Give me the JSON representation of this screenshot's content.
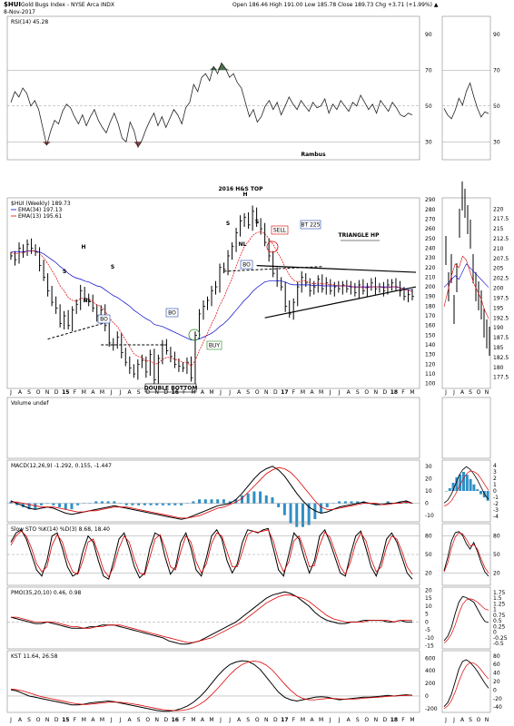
{
  "header": {
    "symbol": "$HUI",
    "name": "Gold Bugs Index - NYSE Arca INDX",
    "date": "8-Nov-2017",
    "ohlc": "Open 186.46 High 191.00 Low 185.78 Close 189.73 Chg +3.71 (+1.99%) ▲"
  },
  "colors": {
    "price": "#000000",
    "ema34": "#0000cc",
    "ema13": "#dd0000",
    "macd_hist": "#2f8fc6",
    "rsi_fill": "#4b6b4b",
    "rsi_low_fill": "#8a4a4a",
    "grid": "#aaaaaa",
    "boxes": "#2244aa"
  },
  "chart_data": [
    {
      "type": "line",
      "panel": "RSI",
      "legend": "RSI(14) 45.28",
      "yticks": [
        30,
        50,
        70,
        90
      ],
      "ylim": [
        20,
        100
      ],
      "annotation": "Rambus",
      "x": [
        0,
        4,
        8,
        12,
        16,
        20,
        24,
        28,
        32,
        36,
        40,
        44,
        48,
        52,
        56,
        60,
        64,
        68,
        72,
        76,
        80,
        84,
        88,
        92,
        96,
        100,
        104,
        108,
        112,
        116,
        120,
        124,
        128,
        132,
        136,
        140,
        144,
        148,
        152,
        156,
        160,
        164,
        168,
        172,
        176,
        180,
        184,
        188,
        192,
        196,
        200,
        204,
        208,
        212,
        216,
        220,
        224,
        228,
        232,
        236,
        240,
        244,
        248,
        252,
        256,
        260,
        264,
        268,
        272,
        276,
        280,
        284,
        288,
        292,
        296,
        300,
        304,
        308,
        312,
        316,
        320,
        324,
        328,
        332,
        336,
        340,
        344,
        348,
        352,
        356,
        360,
        364,
        368,
        372,
        376,
        380,
        384,
        388,
        392,
        396,
        400,
        404
      ],
      "values": [
        52,
        58,
        55,
        60,
        57,
        50,
        53,
        48,
        38,
        28,
        36,
        42,
        40,
        47,
        51,
        49,
        44,
        40,
        45,
        39,
        44,
        48,
        42,
        38,
        35,
        41,
        46,
        40,
        32,
        30,
        41,
        36,
        27,
        31,
        37,
        42,
        46,
        39,
        44,
        38,
        43,
        48,
        45,
        40,
        49,
        52,
        62,
        58,
        66,
        68,
        64,
        72,
        68,
        74,
        71,
        66,
        68,
        63,
        60,
        52,
        44,
        48,
        41,
        44,
        50,
        53,
        48,
        52,
        45,
        50,
        55,
        51,
        48,
        53,
        50,
        47,
        52,
        49,
        50,
        54,
        46,
        51,
        48,
        53,
        50,
        47,
        52,
        50,
        56,
        52,
        48,
        51,
        46,
        53,
        50,
        47,
        52,
        49,
        45,
        44,
        46,
        45
      ],
      "inset_legend": "",
      "inset_yticks": [
        30,
        50,
        70,
        90
      ]
    },
    {
      "type": "line",
      "panel": "Price",
      "title": "2016 H&S TOP",
      "legend": [
        "$HUI (Weekly) 189.73",
        "EMA(34) 197.13",
        "EMA(13) 195.61"
      ],
      "yticks": [
        100,
        110,
        120,
        130,
        140,
        150,
        160,
        170,
        180,
        190,
        200,
        210,
        220,
        230,
        240,
        250,
        260,
        270,
        280,
        290
      ],
      "ylim": [
        95,
        292
      ],
      "x_labels": [
        "J",
        "A",
        "S",
        "O",
        "N",
        "D",
        "15",
        "F",
        "M",
        "A",
        "M",
        "J",
        "J",
        "A",
        "S",
        "O",
        "N",
        "D",
        "16",
        "F",
        "M",
        "A",
        "M",
        "J",
        "J",
        "A",
        "S",
        "O",
        "N",
        "D",
        "17",
        "F",
        "M",
        "A",
        "M",
        "J",
        "J",
        "A",
        "S",
        "O",
        "N",
        "D",
        "18",
        "F",
        "M"
      ],
      "close": [
        232,
        228,
        240,
        236,
        244,
        240,
        236,
        222,
        210,
        196,
        184,
        178,
        162,
        170,
        160,
        176,
        182,
        196,
        188,
        186,
        178,
        170,
        176,
        160,
        142,
        140,
        148,
        132,
        122,
        116,
        110,
        120,
        124,
        112,
        130,
        104,
        126,
        140,
        134,
        128,
        120,
        118,
        116,
        122,
        106,
        150,
        172,
        180,
        186,
        196,
        200,
        220,
        218,
        232,
        242,
        256,
        268,
        272,
        264,
        278,
        266,
        260,
        246,
        232,
        214,
        206,
        200,
        180,
        172,
        184,
        200,
        210,
        204,
        196,
        200,
        208,
        198,
        204,
        196,
        200,
        198,
        202,
        198,
        200,
        194,
        202,
        196,
        200,
        204,
        198,
        200,
        196,
        202,
        204,
        200,
        196,
        190,
        192,
        190
      ],
      "ema34": [
        236,
        236,
        236,
        236,
        237,
        237,
        237,
        236,
        234,
        231,
        228,
        225,
        221,
        218,
        214,
        211,
        209,
        208,
        206,
        205,
        203,
        201,
        200,
        197,
        194,
        191,
        189,
        186,
        183,
        180,
        176,
        173,
        170,
        167,
        165,
        161,
        160,
        159,
        157,
        155,
        153,
        151,
        149,
        147,
        145,
        145,
        146,
        148,
        150,
        152,
        155,
        159,
        162,
        166,
        171,
        176,
        181,
        186,
        190,
        195,
        199,
        202,
        205,
        206,
        206,
        206,
        206,
        205,
        203,
        202,
        202,
        202,
        202,
        202,
        201,
        202,
        201,
        201,
        201,
        201,
        201,
        201,
        201,
        200,
        200,
        200,
        200,
        200,
        200,
        200,
        200,
        200,
        200,
        200,
        200,
        199,
        198,
        197,
        197
      ],
      "ema13": [
        236,
        234,
        235,
        235,
        237,
        237,
        237,
        234,
        230,
        224,
        217,
        210,
        201,
        196,
        189,
        186,
        185,
        188,
        188,
        187,
        185,
        181,
        180,
        175,
        168,
        163,
        159,
        152,
        145,
        138,
        131,
        128,
        127,
        123,
        124,
        120,
        121,
        125,
        127,
        127,
        125,
        124,
        122,
        122,
        118,
        124,
        134,
        143,
        152,
        162,
        170,
        181,
        189,
        199,
        209,
        221,
        232,
        242,
        247,
        253,
        256,
        257,
        255,
        250,
        244,
        236,
        229,
        220,
        212,
        207,
        205,
        206,
        206,
        204,
        203,
        204,
        203,
        203,
        202,
        202,
        201,
        201,
        201,
        201,
        199,
        200,
        199,
        199,
        200,
        200,
        200,
        199,
        199,
        200,
        200,
        199,
        197,
        196,
        195
      ],
      "annotations": [
        "H",
        "S",
        "S",
        "NL",
        "BO",
        "BO",
        "DOUBLE BOTTOM",
        "S",
        "S",
        "H",
        "NL",
        "BO",
        "SELL",
        "BT 225",
        "TRIANGLE HP",
        "BUY"
      ],
      "inset_yticks": [
        177.5,
        180.0,
        182.5,
        185.0,
        187.5,
        190.0,
        192.5,
        195.0,
        197.5,
        200.0,
        202.5,
        205.0,
        207.5,
        210.0,
        212.5,
        215.0,
        217.5,
        220.0
      ]
    },
    {
      "type": "bar",
      "panel": "Volume",
      "legend": "Volume undef",
      "x_labels": [
        "J",
        "A",
        "S",
        "O",
        "N",
        "D",
        "15",
        "F",
        "M",
        "A",
        "M",
        "J",
        "J",
        "A",
        "S",
        "O",
        "N",
        "D",
        "16",
        "F",
        "M",
        "A",
        "M",
        "J",
        "J",
        "A",
        "S",
        "O",
        "N",
        "D",
        "17",
        "F",
        "M",
        "A",
        "M",
        "J",
        "J",
        "A",
        "S",
        "O",
        "N",
        "D",
        "18",
        "F",
        "M"
      ]
    },
    {
      "type": "line",
      "panel": "MACD",
      "legend": "MACD(12,26,9) -1.292, 0.155, -1.447",
      "yticks": [
        -10,
        0,
        10,
        20,
        30
      ],
      "ylim": [
        -15,
        35
      ],
      "macd": [
        2,
        0,
        -2,
        -4,
        -5,
        -4,
        -3,
        -4,
        -6,
        -8,
        -9,
        -8,
        -7,
        -6,
        -5,
        -4,
        -3,
        -2,
        -3,
        -4,
        -5,
        -6,
        -7,
        -8,
        -9,
        -10,
        -11,
        -12,
        -13,
        -12,
        -10,
        -8,
        -6,
        -4,
        -2,
        -1,
        0,
        3,
        8,
        14,
        20,
        25,
        28,
        30,
        27,
        22,
        15,
        8,
        2,
        -3,
        -6,
        -8,
        -7,
        -5,
        -3,
        -2,
        -1,
        0,
        1,
        0,
        -1,
        -1,
        0,
        0,
        1,
        2,
        0
      ],
      "signal": [
        1,
        1,
        0,
        -1,
        -2,
        -3,
        -3,
        -3,
        -4,
        -5,
        -6,
        -7,
        -7,
        -6,
        -6,
        -5,
        -4,
        -3,
        -3,
        -3,
        -4,
        -5,
        -6,
        -7,
        -8,
        -9,
        -10,
        -11,
        -12,
        -12,
        -11,
        -10,
        -8,
        -6,
        -4,
        -3,
        -1,
        1,
        4,
        9,
        14,
        19,
        24,
        27,
        29,
        28,
        25,
        20,
        14,
        8,
        2,
        -3,
        -5,
        -5,
        -4,
        -3,
        -2,
        -1,
        0,
        0,
        0,
        -1,
        -1,
        0,
        0,
        1,
        0
      ],
      "inset_yticks": [
        -4,
        -3,
        -2,
        -1,
        0,
        1,
        2,
        3,
        4
      ]
    },
    {
      "type": "line",
      "panel": "Slow STO",
      "legend": "Slow STO %K(14) %D(3) 8.68, 18.40",
      "yticks": [
        20,
        50,
        80
      ],
      "ylim": [
        0,
        100
      ],
      "k": [
        70,
        85,
        90,
        75,
        50,
        25,
        15,
        40,
        80,
        85,
        60,
        30,
        15,
        20,
        55,
        80,
        70,
        40,
        15,
        10,
        40,
        75,
        85,
        60,
        30,
        12,
        20,
        60,
        85,
        80,
        45,
        18,
        30,
        70,
        85,
        60,
        25,
        15,
        45,
        80,
        90,
        75,
        40,
        20,
        35,
        70,
        90,
        88,
        85,
        90,
        92,
        60,
        25,
        15,
        50,
        85,
        75,
        45,
        20,
        40,
        80,
        90,
        70,
        45,
        20,
        15,
        50,
        80,
        88,
        60,
        30,
        15,
        40,
        75,
        85,
        70,
        45,
        20,
        10
      ],
      "d": [
        65,
        80,
        88,
        80,
        60,
        35,
        22,
        30,
        65,
        82,
        70,
        42,
        22,
        18,
        40,
        70,
        75,
        52,
        25,
        14,
        30,
        60,
        80,
        70,
        42,
        20,
        17,
        45,
        75,
        82,
        60,
        30,
        25,
        55,
        80,
        70,
        38,
        20,
        35,
        68,
        85,
        80,
        55,
        30,
        30,
        55,
        82,
        88,
        86,
        88,
        90,
        72,
        40,
        22,
        38,
        72,
        80,
        58,
        30,
        32,
        65,
        86,
        78,
        55,
        30,
        18,
        38,
        68,
        85,
        72,
        42,
        22,
        30,
        62,
        80,
        75,
        55,
        30,
        18
      ]
    },
    {
      "type": "line",
      "panel": "PMO",
      "legend": "PMO(35,20,10) 0.46, 0.98",
      "yticks": [
        -15,
        -10,
        -5,
        0,
        5,
        10,
        15,
        20
      ],
      "ylim": [
        -17,
        22
      ],
      "pmo": [
        3,
        2,
        1,
        0,
        -1,
        -1,
        0,
        -1,
        -2,
        -3,
        -4,
        -4,
        -4,
        -3,
        -3,
        -2,
        -2,
        -2,
        -3,
        -4,
        -5,
        -6,
        -7,
        -8,
        -9,
        -10,
        -12,
        -13,
        -14,
        -14,
        -13,
        -12,
        -10,
        -8,
        -6,
        -4,
        -2,
        0,
        3,
        6,
        9,
        12,
        15,
        17,
        18,
        19,
        18,
        16,
        13,
        10,
        6,
        3,
        1,
        0,
        -1,
        -1,
        0,
        0,
        1,
        1,
        1,
        1,
        0,
        0,
        1,
        0,
        0
      ],
      "signal": [
        3,
        3,
        2,
        1,
        0,
        0,
        0,
        0,
        -1,
        -2,
        -3,
        -3,
        -4,
        -4,
        -3,
        -3,
        -2,
        -2,
        -2,
        -3,
        -4,
        -5,
        -6,
        -7,
        -8,
        -9,
        -10,
        -11,
        -12,
        -13,
        -13,
        -12,
        -11,
        -10,
        -8,
        -6,
        -4,
        -2,
        0,
        3,
        6,
        9,
        12,
        14,
        16,
        17,
        17,
        16,
        15,
        13,
        10,
        7,
        4,
        2,
        1,
        0,
        0,
        0,
        0,
        1,
        1,
        1,
        1,
        0,
        1,
        1,
        1
      ],
      "inset_yticks": [
        -0.5,
        -0.25,
        0.0,
        0.25,
        0.5,
        0.75,
        1.0,
        1.25,
        1.5,
        1.75
      ]
    },
    {
      "type": "line",
      "panel": "KST",
      "legend": "KST 11.64, 26.58",
      "yticks": [
        -200,
        0,
        200,
        400,
        600
      ],
      "ylim": [
        -260,
        720
      ],
      "kst": [
        100,
        80,
        40,
        0,
        -20,
        -40,
        -60,
        -80,
        -100,
        -120,
        -140,
        -140,
        -130,
        -110,
        -100,
        -90,
        -80,
        -90,
        -110,
        -130,
        -150,
        -170,
        -190,
        -210,
        -230,
        -240,
        -240,
        -230,
        -200,
        -160,
        -100,
        -20,
        80,
        200,
        320,
        420,
        500,
        540,
        560,
        550,
        500,
        420,
        300,
        180,
        60,
        -20,
        -60,
        -80,
        -60,
        -40,
        -20,
        -10,
        -20,
        -40,
        -60,
        -50,
        -40,
        -30,
        -20,
        -20,
        -10,
        0,
        10,
        0,
        10,
        20,
        10
      ],
      "signal": [
        110,
        100,
        80,
        50,
        20,
        -10,
        -30,
        -50,
        -70,
        -90,
        -110,
        -125,
        -135,
        -130,
        -120,
        -110,
        -100,
        -95,
        -100,
        -110,
        -125,
        -140,
        -160,
        -180,
        -200,
        -215,
        -225,
        -232,
        -230,
        -215,
        -185,
        -135,
        -70,
        20,
        120,
        230,
        340,
        430,
        500,
        540,
        555,
        540,
        490,
        410,
        300,
        190,
        90,
        10,
        -40,
        -60,
        -60,
        -50,
        -40,
        -40,
        -45,
        -50,
        -50,
        -45,
        -35,
        -28,
        -22,
        -15,
        -5,
        0,
        5,
        10,
        12
      ],
      "inset_yticks": [
        -40,
        -20,
        0,
        20,
        40,
        60,
        80
      ]
    }
  ],
  "labels": {
    "price_title": "2016 H&S TOP",
    "double_bottom": "DOUBLE BOTTOM",
    "sell": "SELL",
    "bt": "BT 225",
    "triangle": "TRIANGLE HP",
    "buy": "BUY",
    "bo": "BO",
    "h": "H",
    "s": "S",
    "nl": "NL",
    "rambus": "Rambus"
  }
}
